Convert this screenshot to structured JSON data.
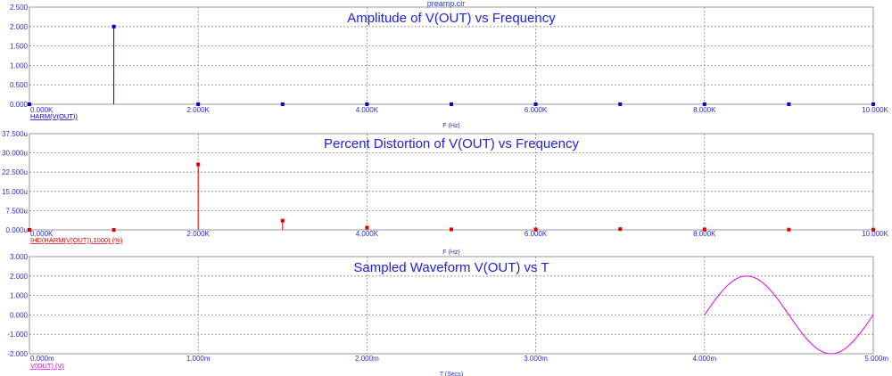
{
  "file_title": "preamp.cir",
  "chart_data": [
    {
      "type": "bar",
      "title": "Amplitude of V(OUT) vs Frequency",
      "xlabel": "F (Hz)",
      "series_label": "HARM(V(OUT))",
      "color": "#0000cc",
      "xlim": [
        0,
        10000
      ],
      "ylim": [
        0,
        2.5
      ],
      "x_ticks": [
        "0.000K",
        "2.000K",
        "4.000K",
        "6.000K",
        "8.000K",
        "10.000K"
      ],
      "y_ticks": [
        "0.000",
        "0.500",
        "1.000",
        "1.500",
        "2.000",
        "2.500"
      ],
      "x": [
        0,
        1000,
        2000,
        3000,
        4000,
        5000,
        6000,
        7000,
        8000,
        9000,
        10000
      ],
      "values": [
        0,
        2.0,
        0.001,
        0.001,
        0.001,
        0.001,
        0.001,
        0.001,
        0.001,
        0.001,
        0.001
      ],
      "grid": true
    },
    {
      "type": "bar",
      "title": "Percent Distortion of V(OUT) vs Frequency",
      "xlabel": "F (Hz)",
      "series_label": "IHD(HARM(V(OUT)),1000) (%)",
      "color": "#e00000",
      "xlim": [
        0,
        10000
      ],
      "ylim": [
        0,
        37.5
      ],
      "x_ticks": [
        "0.000K",
        "2.000K",
        "4.000K",
        "6.000K",
        "8.000K",
        "10.000K"
      ],
      "y_ticks": [
        "0.000u",
        "7.500u",
        "15.000u",
        "22.500u",
        "30.000u",
        "37.500u"
      ],
      "x": [
        0,
        1000,
        2000,
        3000,
        4000,
        5000,
        6000,
        7000,
        8000,
        9000,
        10000
      ],
      "values": [
        0,
        0,
        25.5,
        3.6,
        0.9,
        0.2,
        0.2,
        0.3,
        0.2,
        0.1,
        0.1
      ],
      "grid": true
    },
    {
      "type": "line",
      "title": "Sampled Waveform  V(OUT) vs T",
      "xlabel": "T (Secs)",
      "series_label": "V(OUT) (V)",
      "color": "#e000e0",
      "xlim": [
        0,
        0.005
      ],
      "ylim": [
        -2,
        3
      ],
      "x_ticks": [
        "0.000m",
        "1.000m",
        "2.000m",
        "3.000m",
        "4.000m",
        "5.000m"
      ],
      "y_ticks": [
        "-2.000",
        "-1.000",
        "0.000",
        "1.000",
        "2.000",
        "3.000"
      ],
      "waveform": {
        "start": 0.004,
        "end": 0.005,
        "amplitude": 2.0,
        "frequency_hz": 1000,
        "offset": 0
      },
      "grid": true
    }
  ]
}
